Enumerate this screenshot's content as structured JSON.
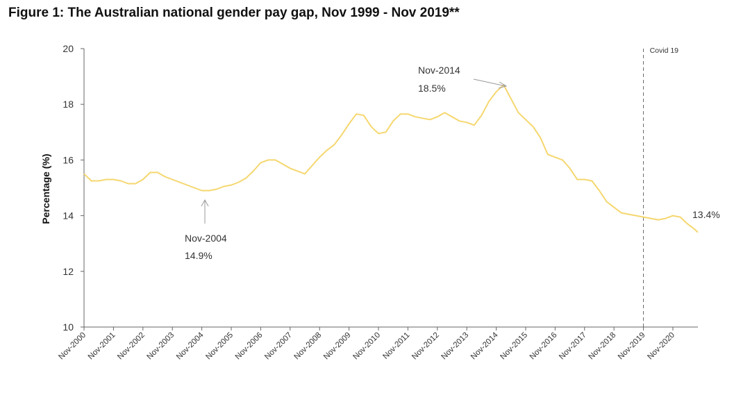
{
  "title": "Figure 1: The Australian national gender pay gap, Nov 1999 - Nov 2019**",
  "chart_data": {
    "type": "line",
    "title": "Figure 1: The Australian national gender pay gap, Nov 1999 - Nov 2019**",
    "xlabel": "",
    "ylabel": "Percentage (%)",
    "ylim": [
      10,
      20
    ],
    "yticks": [
      "10",
      "12",
      "14",
      "16",
      "18",
      "20"
    ],
    "xlim": [
      2000,
      2020.85
    ],
    "x_tick_labels": [
      "Nov-2000",
      "Nov-2001",
      "Nov-2002",
      "Nov-2003",
      "Nov-2004",
      "Nov-2005",
      "Nov-2006",
      "Nov-2007",
      "Nov-2008",
      "Nov-2009",
      "Nov-2010",
      "Nov-2011",
      "Nov-2012",
      "Nov-2013",
      "Nov-2014",
      "Nov-2015",
      "Nov-2016",
      "Nov-2017",
      "Nov-2018",
      "Nov-2019",
      "Nov-2020"
    ],
    "line_color": "#f5d76e",
    "grid": false,
    "series": [
      {
        "x": [
          2000,
          2000.25,
          2000.5,
          2000.75,
          2001,
          2001.25,
          2001.5,
          2001.75,
          2002,
          2002.25,
          2002.5,
          2002.75,
          2003,
          2003.25,
          2003.5,
          2003.75,
          2004,
          2004.25,
          2004.5,
          2004.75,
          2005,
          2005.25,
          2005.5,
          2005.75,
          2006,
          2006.25,
          2006.5,
          2006.75,
          2007,
          2007.25,
          2007.5,
          2007.75,
          2008,
          2008.25,
          2008.5,
          2008.75,
          2009,
          2009.25,
          2009.5,
          2009.75,
          2010,
          2010.25,
          2010.5,
          2010.75,
          2011,
          2011.25,
          2011.5,
          2011.75,
          2012,
          2012.25,
          2012.5,
          2012.75,
          2013,
          2013.25,
          2013.5,
          2013.75,
          2014,
          2014.25,
          2014.5,
          2014.75,
          2015,
          2015.25,
          2015.5,
          2015.75,
          2016,
          2016.25,
          2016.5,
          2016.75,
          2017,
          2017.25,
          2017.5,
          2017.75,
          2018,
          2018.25,
          2018.5,
          2018.75,
          2019,
          2019.25,
          2019.5,
          2019.75,
          2020,
          2020.25,
          2020.5,
          2020.75,
          2020.85
        ],
        "y": [
          15.5,
          15.25,
          15.25,
          15.3,
          15.3,
          15.25,
          15.15,
          15.15,
          15.3,
          15.55,
          15.55,
          15.4,
          15.3,
          15.2,
          15.1,
          15.0,
          14.9,
          14.9,
          14.95,
          15.05,
          15.1,
          15.2,
          15.35,
          15.6,
          15.9,
          16.0,
          16.0,
          15.85,
          15.7,
          15.6,
          15.5,
          15.8,
          16.1,
          16.35,
          16.55,
          16.9,
          17.3,
          17.65,
          17.6,
          17.2,
          16.95,
          17.0,
          17.4,
          17.65,
          17.65,
          17.55,
          17.5,
          17.45,
          17.55,
          17.7,
          17.55,
          17.4,
          17.35,
          17.25,
          17.6,
          18.1,
          18.45,
          18.7,
          18.2,
          17.7,
          17.45,
          17.2,
          16.8,
          16.2,
          16.1,
          16.0,
          15.7,
          15.3,
          15.3,
          15.25,
          14.9,
          14.5,
          14.3,
          14.1,
          14.05,
          14.0,
          13.95,
          13.9,
          13.85,
          13.9,
          14.0,
          13.95,
          13.7,
          13.5,
          13.4
        ]
      }
    ],
    "annotations": [
      {
        "line1": "Nov-2014",
        "line2": "18.5%"
      },
      {
        "line1": "Nov-2004",
        "line2": "14.9%"
      },
      {
        "text": "13.4%"
      },
      {
        "text": "Covid 19"
      }
    ]
  }
}
